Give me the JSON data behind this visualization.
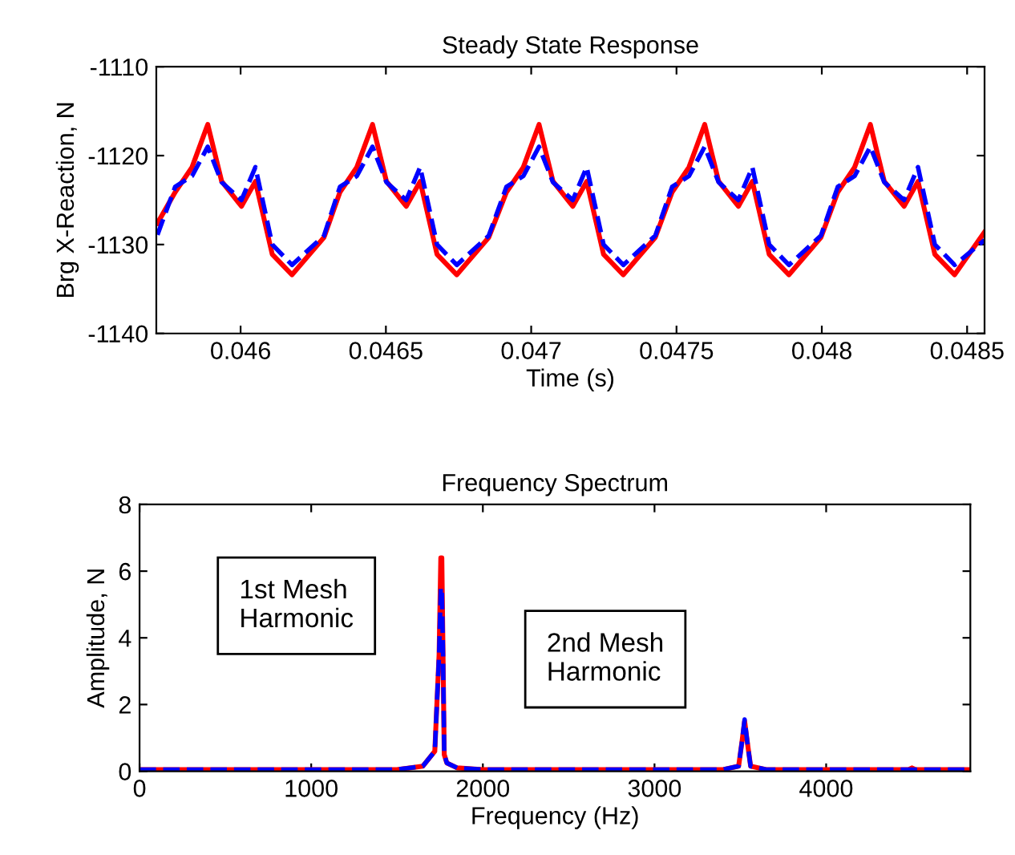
{
  "chart_data": [
    {
      "type": "line",
      "title": "Steady State Response",
      "xlabel": "Time (s)",
      "ylabel": "Brg X-Reaction, N",
      "xlim": [
        0.04571,
        0.04856
      ],
      "xticks": [
        0.046,
        0.0465,
        0.047,
        0.0475,
        0.048,
        0.0485
      ],
      "ylim": [
        -1140,
        -1110
      ],
      "yticks": [
        -1140,
        -1130,
        -1120,
        -1110
      ],
      "grid": false,
      "legend": false,
      "series": [
        {
          "color": "#ff0000",
          "line_style": "solid",
          "x": [
            0.045714,
            0.045775,
            0.045833,
            0.045887,
            0.045935,
            0.046003,
            0.046051,
            0.046109,
            0.046177,
            0.046287,
            0.046342,
            0.0464,
            0.046454,
            0.046502,
            0.04657,
            0.046618,
            0.046676,
            0.046744,
            0.046854,
            0.046915,
            0.046973,
            0.047027,
            0.047075,
            0.047143,
            0.047191,
            0.047249,
            0.047317,
            0.047427,
            0.047485,
            0.047543,
            0.047597,
            0.047645,
            0.047713,
            0.047761,
            0.047819,
            0.047887,
            0.047997,
            0.048055,
            0.048113,
            0.048167,
            0.048215,
            0.048283,
            0.048331,
            0.048389,
            0.048457,
            0.04856
          ],
          "values": [
            -1127.6,
            -1124.1,
            -1121.3,
            -1116.5,
            -1122.9,
            -1125.7,
            -1122.9,
            -1131.1,
            -1133.4,
            -1129.2,
            -1124.1,
            -1121.3,
            -1116.5,
            -1122.9,
            -1125.7,
            -1122.9,
            -1131.1,
            -1133.4,
            -1129.2,
            -1124.1,
            -1121.3,
            -1116.5,
            -1122.9,
            -1125.7,
            -1122.9,
            -1131.1,
            -1133.4,
            -1129.2,
            -1124.1,
            -1121.3,
            -1116.5,
            -1122.9,
            -1125.7,
            -1122.9,
            -1131.1,
            -1133.4,
            -1129.2,
            -1124.1,
            -1121.3,
            -1116.5,
            -1122.9,
            -1125.7,
            -1122.9,
            -1131.1,
            -1133.4,
            -1128.6
          ]
        },
        {
          "color": "#0000ff",
          "line_style": "dashed",
          "x": [
            0.045714,
            0.045775,
            0.045833,
            0.045887,
            0.045935,
            0.046003,
            0.046051,
            0.046109,
            0.046177,
            0.046287,
            0.046342,
            0.0464,
            0.046454,
            0.046502,
            0.04657,
            0.046618,
            0.046676,
            0.046744,
            0.046854,
            0.046915,
            0.046973,
            0.047027,
            0.047075,
            0.047143,
            0.047191,
            0.047249,
            0.047317,
            0.047427,
            0.047485,
            0.047543,
            0.047597,
            0.047645,
            0.047713,
            0.047761,
            0.047819,
            0.047887,
            0.047997,
            0.048055,
            0.048113,
            0.048167,
            0.048215,
            0.048283,
            0.048331,
            0.048389,
            0.048457,
            0.04856
          ],
          "values": [
            -1128.9,
            -1123.5,
            -1122.3,
            -1119.0,
            -1123.0,
            -1125.0,
            -1121.3,
            -1130.0,
            -1132.3,
            -1129.0,
            -1123.5,
            -1122.3,
            -1119.0,
            -1123.0,
            -1125.0,
            -1121.3,
            -1130.0,
            -1132.3,
            -1129.0,
            -1123.5,
            -1122.3,
            -1119.0,
            -1123.0,
            -1125.0,
            -1121.3,
            -1130.0,
            -1132.3,
            -1129.0,
            -1123.5,
            -1122.3,
            -1119.0,
            -1123.0,
            -1125.0,
            -1121.3,
            -1130.0,
            -1132.3,
            -1129.0,
            -1123.5,
            -1122.3,
            -1119.0,
            -1123.0,
            -1125.0,
            -1121.3,
            -1130.0,
            -1132.3,
            -1129.5
          ]
        }
      ]
    },
    {
      "type": "line",
      "title": "Frequency Spectrum",
      "xlabel": "Frequency (Hz)",
      "ylabel": "Amplitude, N",
      "xlim": [
        0,
        4840
      ],
      "xticks": [
        0,
        1000,
        2000,
        3000,
        4000
      ],
      "ylim": [
        0,
        8
      ],
      "yticks": [
        0,
        2,
        4,
        6,
        8
      ],
      "grid": false,
      "legend": false,
      "annotations": [
        "1st Mesh\nHarmonic",
        "2nd Mesh\nHarmonic"
      ],
      "series": [
        {
          "color": "#ff0000",
          "line_style": "solid",
          "x": [
            0,
            1500,
            1650,
            1720,
            1745,
            1755,
            1761,
            1768,
            1775,
            1790,
            1850,
            2000,
            3400,
            3490,
            3510,
            3525,
            3540,
            3560,
            3650,
            4480,
            4500,
            4520,
            4840
          ],
          "values": [
            0.05,
            0.05,
            0.15,
            0.6,
            3.5,
            6.4,
            6.4,
            3.5,
            0.5,
            0.25,
            0.1,
            0.05,
            0.05,
            0.15,
            0.9,
            1.5,
            0.9,
            0.15,
            0.05,
            0.05,
            0.1,
            0.05,
            0.05
          ]
        },
        {
          "color": "#0000ff",
          "line_style": "dashed",
          "x": [
            0,
            1500,
            1650,
            1720,
            1745,
            1755,
            1761,
            1768,
            1775,
            1790,
            1850,
            2000,
            3400,
            3490,
            3510,
            3525,
            3540,
            3560,
            3650,
            4840
          ],
          "values": [
            0.05,
            0.05,
            0.15,
            0.6,
            3.5,
            5.5,
            5.5,
            3.5,
            0.5,
            0.25,
            0.1,
            0.05,
            0.05,
            0.15,
            0.9,
            1.55,
            0.9,
            0.15,
            0.05,
            0.05
          ]
        }
      ]
    }
  ]
}
